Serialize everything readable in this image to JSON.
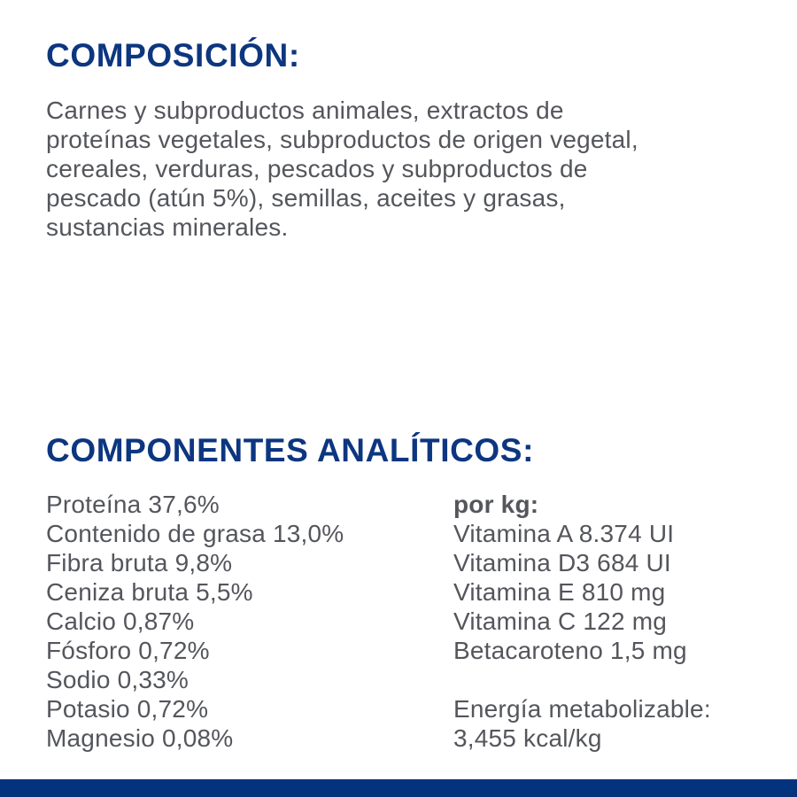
{
  "page": {
    "background": "#ffffff",
    "heading_color": "#0d3680",
    "body_text_color": "#54565c",
    "bottom_bar_color": "#04337e"
  },
  "composition": {
    "title": "COMPOSICIÓN:",
    "body": "Carnes y subproductos animales, extractos de\nproteínas vegetales, subproductos de origen vegetal,\ncereales, verduras, pescados y subproductos de\npescado (atún 5%), semillas, aceites y grasas,\nsustancias minerales."
  },
  "analytical": {
    "title": "COMPONENTES ANALÍTICOS:",
    "nutrients": [
      "Proteína 37,6%",
      "Contenido de grasa 13,0%",
      "Fibra bruta 9,8%",
      "Ceniza bruta 5,5%",
      "Calcio 0,87%",
      "Fósforo 0,72%",
      "Sodio 0,33%",
      "Potasio 0,72%",
      "Magnesio 0,08%"
    ],
    "per_kg_label": "por kg:",
    "vitamins": [
      "Vitamina A 8.374 UI",
      "Vitamina D3 684 UI",
      "Vitamina E 810 mg",
      "Vitamina C 122 mg",
      "Betacaroteno 1,5 mg"
    ],
    "energy_label": "Energía metabolizable:",
    "energy_value": "3,455 kcal/kg"
  }
}
